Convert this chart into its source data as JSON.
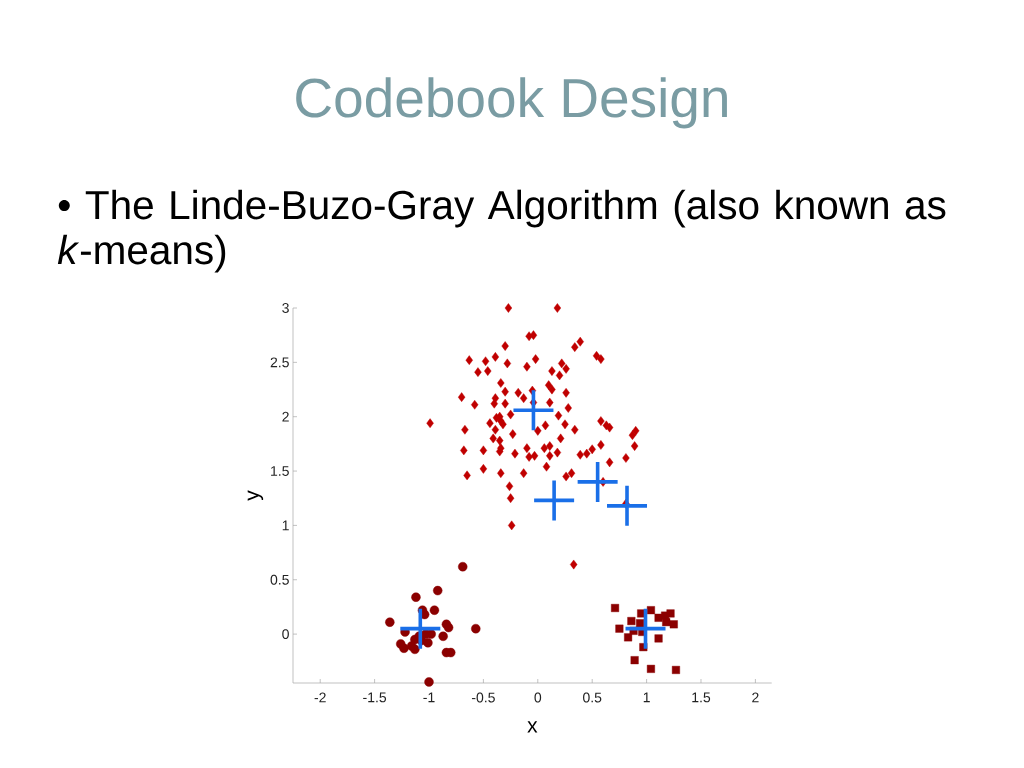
{
  "chart_data": {
    "type": "scatter",
    "title": "Codebook Design",
    "subtitle": "• The Linde-Buzo-Gray Algorithm (also known as *k*-means)",
    "xlabel": "x",
    "ylabel": "y",
    "xlim": [
      -2.25,
      2.15
    ],
    "ylim": [
      -0.45,
      3
    ],
    "xticks": [
      -2,
      -1.5,
      -1,
      -0.5,
      0,
      0.5,
      1,
      1.5,
      2
    ],
    "yticks": [
      0,
      0.5,
      1,
      1.5,
      2,
      2.5,
      3
    ],
    "series": [
      {
        "color": "#c00000",
        "marker": "diamond",
        "x": [
          -0.27,
          0.18,
          -0.08,
          -0.04,
          -0.3,
          0.39,
          0.34,
          -0.63,
          -0.48,
          -0.39,
          -0.28,
          -0.02,
          -0.1,
          0.22,
          0.26,
          0.13,
          0.2,
          0.54,
          0.58,
          -0.55,
          -0.46,
          -0.34,
          -0.3,
          -0.7,
          -0.58,
          -0.39,
          -0.4,
          -0.3,
          -0.18,
          -0.13,
          -0.05,
          -0.04,
          0.1,
          0.13,
          0.11,
          0.26,
          0.28,
          0.19,
          -0.44,
          -0.38,
          -0.34,
          -0.35,
          -0.32,
          -0.25,
          -0.67,
          -0.39,
          -0.41,
          -0.35,
          -0.23,
          0.0,
          0.07,
          0.25,
          0.21,
          0.34,
          0.58,
          0.63,
          0.66,
          0.87,
          0.9,
          -0.34,
          -0.35,
          -0.68,
          -0.5,
          -0.21,
          -0.1,
          -0.08,
          -0.03,
          0.06,
          0.11,
          0.11,
          0.18,
          0.08,
          0.39,
          0.45,
          0.5,
          0.58,
          0.66,
          0.81,
          0.89,
          -0.65,
          -0.5,
          -0.34,
          -0.13,
          -0.26,
          -0.25,
          -0.24,
          0.26,
          0.31,
          0.6,
          0.81,
          0.33,
          -0.99
        ],
        "values": [
          3.0,
          3.0,
          2.74,
          2.75,
          2.65,
          2.69,
          2.64,
          2.52,
          2.51,
          2.55,
          2.49,
          2.53,
          2.46,
          2.49,
          2.44,
          2.42,
          2.38,
          2.56,
          2.53,
          2.41,
          2.42,
          2.31,
          2.23,
          2.18,
          2.11,
          2.17,
          2.12,
          2.12,
          2.22,
          2.17,
          2.24,
          2.13,
          2.29,
          2.25,
          2.13,
          2.22,
          2.08,
          2.01,
          1.94,
          1.99,
          1.96,
          2.0,
          1.93,
          2.02,
          1.88,
          1.88,
          1.8,
          1.78,
          1.84,
          1.87,
          1.92,
          1.93,
          1.8,
          1.88,
          1.96,
          1.92,
          1.9,
          1.83,
          1.87,
          1.71,
          1.68,
          1.69,
          1.69,
          1.66,
          1.71,
          1.63,
          1.64,
          1.71,
          1.73,
          1.64,
          1.67,
          1.54,
          1.65,
          1.66,
          1.7,
          1.74,
          1.58,
          1.62,
          1.73,
          1.46,
          1.52,
          1.48,
          1.48,
          1.36,
          1.25,
          1.0,
          1.45,
          1.48,
          1.4,
          1.2,
          0.64,
          1.94
        ]
      },
      {
        "color": "#8b0000",
        "marker": "circle",
        "x": [
          -0.69,
          -0.92,
          -1.12,
          -1.06,
          -1.04,
          -0.95,
          -1.36,
          -0.84,
          -0.82,
          -0.57,
          -1.22,
          -1.13,
          -1.09,
          -1.03,
          -0.98,
          -0.87,
          -1.26,
          -1.23,
          -1.16,
          -1.13,
          -0.84,
          -0.8,
          -1.0,
          -1.07,
          -1.01
        ],
        "values": [
          0.62,
          0.4,
          0.34,
          0.22,
          0.18,
          0.22,
          0.11,
          0.09,
          0.06,
          0.05,
          0.02,
          -0.05,
          -0.02,
          0.0,
          0.0,
          -0.02,
          -0.09,
          -0.13,
          -0.11,
          -0.14,
          -0.17,
          -0.17,
          -0.44,
          -0.06,
          -0.08
        ]
      },
      {
        "color": "#8b0000",
        "marker": "square",
        "x": [
          0.71,
          0.95,
          1.04,
          1.11,
          1.17,
          1.22,
          1.18,
          1.25,
          0.86,
          0.75,
          0.88,
          0.96,
          0.83,
          1.11,
          0.97,
          0.89,
          1.04,
          1.27,
          0.94
        ],
        "values": [
          0.24,
          0.19,
          0.22,
          0.15,
          0.17,
          0.19,
          0.11,
          0.09,
          0.12,
          0.05,
          0.03,
          0.02,
          -0.03,
          -0.04,
          -0.12,
          -0.24,
          -0.32,
          -0.33,
          0.1
        ]
      },
      {
        "color": "#1a6fe8",
        "marker": "cross",
        "x": [
          -0.04,
          0.15,
          0.55,
          0.82,
          -1.08,
          0.99
        ],
        "values": [
          2.06,
          1.23,
          1.4,
          1.18,
          0.05,
          0.05
        ]
      }
    ]
  }
}
